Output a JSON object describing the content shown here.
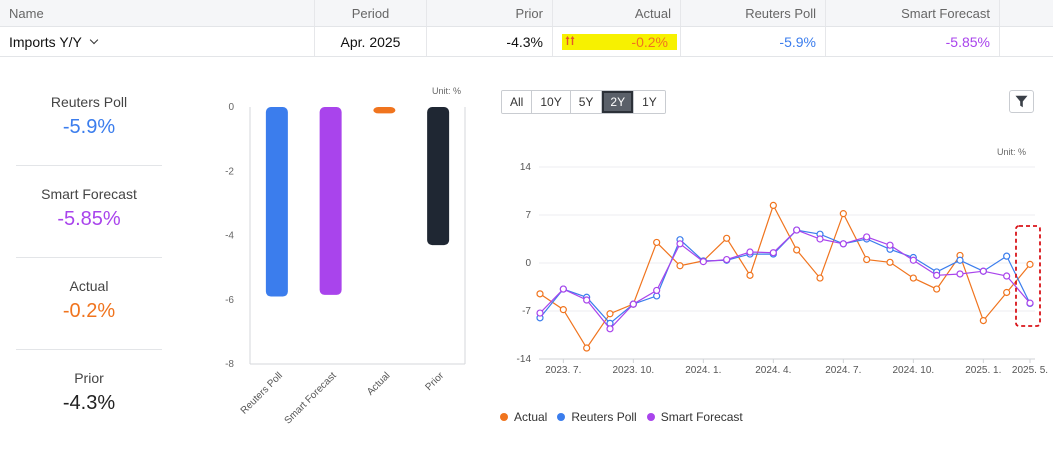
{
  "table": {
    "headers": [
      "Name",
      "Period",
      "Prior",
      "Actual",
      "Reuters Poll",
      "Smart Forecast"
    ],
    "row": {
      "name": "Imports Y/Y",
      "period": "Apr. 2025",
      "prior": "-4.3%",
      "actual": "-0.2%",
      "reuters_poll": "-5.9%",
      "smart_forecast": "-5.85%"
    }
  },
  "stats": [
    {
      "label": "Reuters Poll",
      "value": "-5.9%",
      "color": "#3b7ded"
    },
    {
      "label": "Smart Forecast",
      "value": "-5.85%",
      "color": "#a944ec"
    },
    {
      "label": "Actual",
      "value": "-0.2%",
      "color": "#f0741e"
    },
    {
      "label": "Prior",
      "value": "-4.3%",
      "color": "#222222"
    }
  ],
  "ranges": {
    "options": [
      "All",
      "10Y",
      "5Y",
      "2Y",
      "1Y"
    ],
    "selected": "2Y"
  },
  "icons": {
    "filter": "filter-icon",
    "chevron": "chevron-down-icon",
    "arrows": "up-arrows-icon"
  },
  "colors": {
    "actual": "#f0741e",
    "reuters": "#3b7ded",
    "forecast": "#a944ec",
    "prior": "#1f2733"
  },
  "chart_data": [
    {
      "type": "bar",
      "unit_label": "Unit: %",
      "categories": [
        "Reuters Poll",
        "Smart Forecast",
        "Actual",
        "Prior"
      ],
      "values": [
        -5.9,
        -5.85,
        -0.2,
        -4.3
      ],
      "colors": [
        "#3b7ded",
        "#a944ec",
        "#f0741e",
        "#1f2733"
      ],
      "ylim": [
        -8,
        0
      ],
      "yticks": [
        "0",
        "-2",
        "-4",
        "-6",
        "-8"
      ]
    },
    {
      "type": "line",
      "unit_label": "Unit: %",
      "ylim": [
        -14,
        14
      ],
      "yticks": [
        "14",
        "7",
        "0",
        "-7",
        "-14"
      ],
      "xticks": [
        "2023. 7.",
        "2023. 10.",
        "2024. 1.",
        "2024. 4.",
        "2024. 7.",
        "2024. 10.",
        "2025. 1.",
        "2025. 5."
      ],
      "series": [
        {
          "name": "Actual",
          "color": "#f0741e",
          "values": [
            -4.5,
            -6.8,
            -12.4,
            -7.4,
            -6.0,
            3.0,
            -0.4,
            0.3,
            3.6,
            -1.8,
            8.4,
            1.9,
            -2.2,
            7.2,
            0.5,
            0.1,
            -2.2,
            -3.8,
            1.1,
            -8.4,
            -4.3,
            -0.2
          ]
        },
        {
          "name": "Reuters Poll",
          "color": "#3b7ded",
          "values": [
            -8.0,
            -3.8,
            -5.0,
            -8.8,
            -6.0,
            -4.8,
            3.4,
            0.3,
            0.4,
            1.3,
            1.3,
            4.8,
            4.2,
            2.8,
            3.5,
            2.0,
            0.8,
            -1.3,
            0.4,
            -1.2,
            1.0,
            -5.9
          ]
        },
        {
          "name": "Smart Forecast",
          "color": "#a944ec",
          "values": [
            -7.3,
            -3.8,
            -5.4,
            -9.6,
            -6.0,
            -4.0,
            2.8,
            0.2,
            0.5,
            1.6,
            1.5,
            4.8,
            3.5,
            2.8,
            3.8,
            2.6,
            0.4,
            -1.8,
            -1.6,
            -1.2,
            -1.9,
            -5.85
          ]
        }
      ],
      "legend": [
        "Actual",
        "Reuters Poll",
        "Smart Forecast"
      ]
    }
  ]
}
